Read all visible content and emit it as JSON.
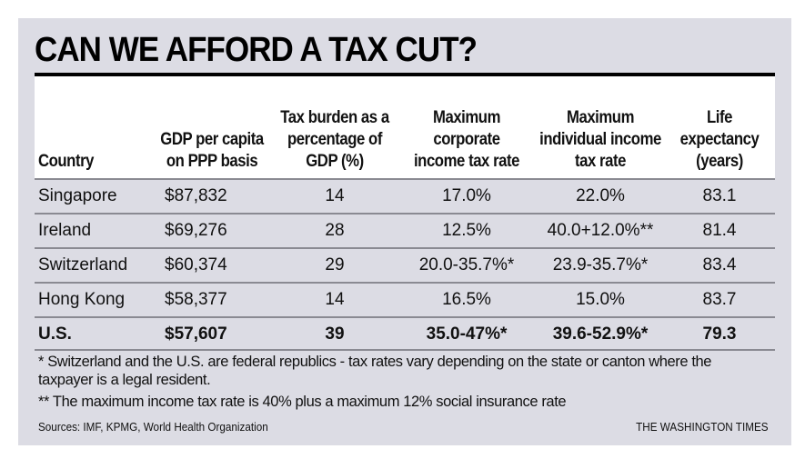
{
  "title": "CAN WE AFFORD A TAX CUT?",
  "chart_data": {
    "type": "table",
    "title": "CAN WE AFFORD A TAX CUT?",
    "columns": [
      "Country",
      "GDP per capita on PPP basis",
      "Tax burden as a percentage of GDP (%)",
      "Maximum corporate income tax rate",
      "Maximum individual income tax rate",
      "Life expectancy (years)"
    ],
    "rows": [
      [
        "Singapore",
        "$87,832",
        "14",
        "17.0%",
        "22.0%",
        "83.1"
      ],
      [
        "Ireland",
        "$69,276",
        "28",
        "12.5%",
        "40.0+12.0%**",
        "81.4"
      ],
      [
        "Switzerland",
        "$60,374",
        "29",
        "20.0-35.7%*",
        "23.9-35.7%*",
        "83.4"
      ],
      [
        "Hong Kong",
        "$58,377",
        "14",
        "16.5%",
        "15.0%",
        "83.7"
      ],
      [
        "U.S.",
        "$57,607",
        "39",
        "35.0-47%*",
        "39.6-52.9%*",
        "79.3"
      ]
    ],
    "highlight_row": "U.S."
  },
  "footnotes": [
    "* Switzerland and the U.S. are federal republics - tax rates vary depending on the state or canton where the taxpayer is a legal resident.",
    "** The maximum income tax rate is 40% plus a maximum 12% social insurance rate"
  ],
  "sources": "Sources: IMF, KPMG, World Health Organization",
  "credit": "THE WASHINGTON TIMES"
}
